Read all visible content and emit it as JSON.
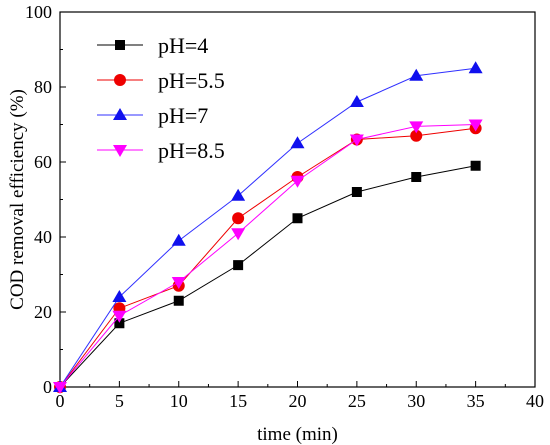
{
  "chart_data": {
    "type": "line",
    "xlabel": "time (min)",
    "ylabel": "COD removal efficiency (%)",
    "xlim": [
      0,
      40
    ],
    "ylim": [
      0,
      100
    ],
    "xticks": [
      0,
      5,
      10,
      15,
      20,
      25,
      30,
      35,
      40
    ],
    "yticks": [
      0,
      20,
      40,
      60,
      80,
      100
    ],
    "grid": false,
    "legend_position": "top-left",
    "x": [
      0,
      5,
      10,
      15,
      20,
      25,
      30,
      35
    ],
    "series": [
      {
        "name": "pH=4",
        "marker": "square",
        "color": "#000000",
        "line_color": "#000000",
        "values": [
          0,
          17,
          23,
          32.5,
          45,
          52,
          56,
          59
        ]
      },
      {
        "name": "pH=5.5",
        "marker": "circle",
        "color": "#ee0000",
        "line_color": "#ee0000",
        "values": [
          0,
          21,
          27,
          45,
          56,
          66,
          67,
          69
        ]
      },
      {
        "name": "pH=7",
        "marker": "triangle-up",
        "color": "#1010ee",
        "line_color": "#3030ff",
        "values": [
          0,
          24,
          39,
          51,
          65,
          76,
          83,
          85
        ]
      },
      {
        "name": "pH=8.5",
        "marker": "triangle-down",
        "color": "#ff00ff",
        "line_color": "#ff00ff",
        "values": [
          0,
          19,
          28,
          41,
          55,
          66,
          69.5,
          70
        ]
      }
    ]
  }
}
